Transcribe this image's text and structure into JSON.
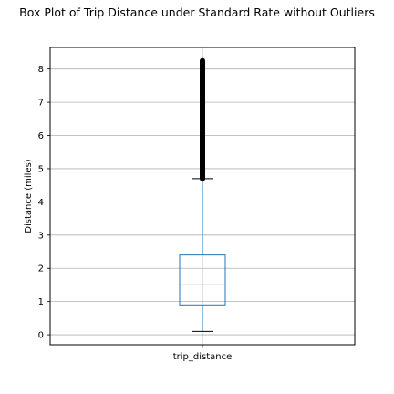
{
  "chart_data": {
    "type": "box",
    "title": "Box Plot of Trip Distance under Standard Rate without Outliers",
    "xlabel": "",
    "ylabel": "Distance (miles)",
    "categories": [
      "trip_distance"
    ],
    "ylim": [
      -0.3,
      8.65
    ],
    "yticks": [
      0,
      1,
      2,
      3,
      4,
      5,
      6,
      7,
      8
    ],
    "grid": true,
    "box": {
      "whisker_low": 0.1,
      "q1": 0.9,
      "median": 1.5,
      "q3": 2.4,
      "whisker_high": 4.7
    },
    "outliers_range": [
      4.7,
      8.25
    ],
    "colors": {
      "box": "#1f77b4",
      "median": "#2ca02c",
      "whisker": "#1f77b4",
      "caps": "#000000",
      "outliers": "#000000",
      "grid": "#b0b0b0"
    }
  }
}
